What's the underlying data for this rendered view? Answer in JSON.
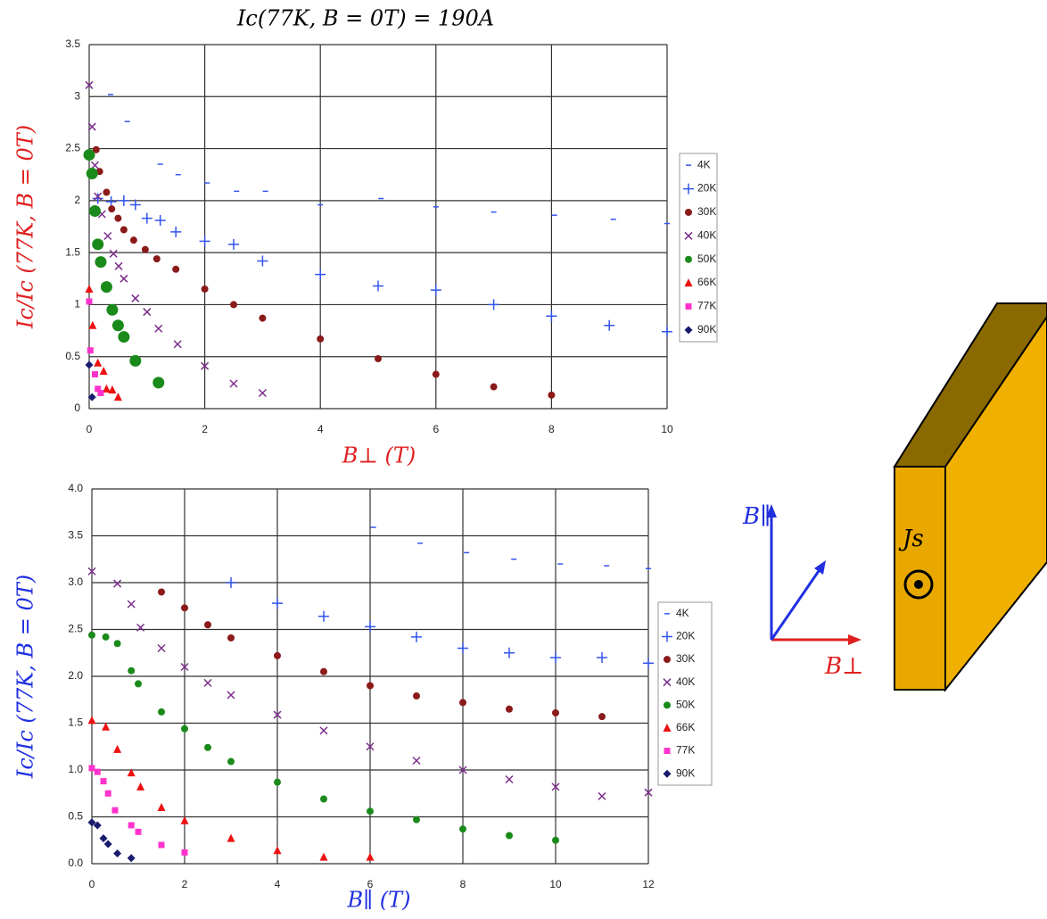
{
  "chart_data": [
    {
      "type": "scatter",
      "title": "Ic(77K, B = 0T) = 190A",
      "xlabel": "B⊥ (T)",
      "ylabel": "Ic/Ic (77K, B = 0T)",
      "label_color": "#e02020",
      "xlim": [
        0,
        10
      ],
      "xticks": [
        0,
        2,
        4,
        6,
        8,
        10
      ],
      "ylim": [
        0,
        3.5
      ],
      "yticks": [
        0,
        0.5,
        1,
        1.5,
        2,
        2.5,
        3,
        3.5
      ],
      "grid": true,
      "legend": "right",
      "series": [
        {
          "name": "4K",
          "color": "#3355ee",
          "marker": "dash",
          "x": [
            0.37,
            0.66,
            1.23,
            1.54,
            2.04,
            2.55,
            3.05,
            4.0,
            5.05,
            6.0,
            7.0,
            8.05,
            9.07,
            10.0
          ],
          "values": [
            3.02,
            2.76,
            2.35,
            2.25,
            2.17,
            2.09,
            2.09,
            1.96,
            2.02,
            1.94,
            1.89,
            1.86,
            1.82,
            1.78
          ]
        },
        {
          "name": "20K",
          "color": "#3355ee",
          "marker": "plus",
          "x": [
            0.15,
            0.38,
            0.6,
            0.8,
            1.0,
            1.23,
            1.5,
            2.0,
            2.5,
            3.0,
            4.0,
            5.0,
            6.0,
            7.0,
            8.0,
            9.0,
            10.0
          ],
          "values": [
            2.02,
            1.99,
            2.0,
            1.96,
            1.83,
            1.81,
            1.7,
            1.61,
            1.58,
            1.42,
            1.29,
            1.18,
            1.14,
            1.0,
            0.89,
            0.8,
            0.74
          ]
        },
        {
          "name": "30K",
          "color": "#8b1a1a",
          "marker": "circle",
          "x": [
            0.12,
            0.18,
            0.3,
            0.39,
            0.5,
            0.6,
            0.77,
            0.97,
            1.17,
            1.5,
            2.0,
            2.5,
            3.0,
            4.0,
            5.0,
            6.0,
            7.0,
            8.0
          ],
          "values": [
            2.49,
            2.28,
            2.08,
            1.92,
            1.83,
            1.72,
            1.62,
            1.53,
            1.44,
            1.34,
            1.15,
            1.0,
            0.87,
            0.67,
            0.48,
            0.33,
            0.21,
            0.13
          ]
        },
        {
          "name": "40K",
          "color": "#7b2d8b",
          "marker": "x",
          "x": [
            0,
            0.05,
            0.1,
            0.15,
            0.22,
            0.32,
            0.42,
            0.51,
            0.6,
            0.8,
            1.0,
            1.2,
            1.53,
            2.0,
            2.5,
            3.0
          ],
          "values": [
            3.11,
            2.71,
            2.34,
            2.04,
            1.87,
            1.66,
            1.49,
            1.37,
            1.25,
            1.06,
            0.93,
            0.77,
            0.62,
            0.41,
            0.24,
            0.15
          ]
        },
        {
          "name": "50K",
          "color": "#1a8a1a",
          "marker": "bigcircle",
          "x": [
            0,
            0.05,
            0.1,
            0.15,
            0.2,
            0.3,
            0.4,
            0.5,
            0.6,
            0.8,
            1.2
          ],
          "values": [
            2.44,
            2.26,
            1.9,
            1.58,
            1.41,
            1.17,
            0.95,
            0.8,
            0.69,
            0.46,
            0.25
          ]
        },
        {
          "name": "66K",
          "color": "#ee1111",
          "marker": "triangle",
          "x": [
            0,
            0.06,
            0.15,
            0.25,
            0.3,
            0.4,
            0.5
          ],
          "values": [
            1.15,
            0.8,
            0.44,
            0.36,
            0.19,
            0.18,
            0.11
          ]
        },
        {
          "name": "77K",
          "color": "#ff33cc",
          "marker": "square",
          "x": [
            0,
            0.02,
            0.1,
            0.15,
            0.2
          ],
          "values": [
            1.03,
            0.56,
            0.33,
            0.19,
            0.15
          ]
        },
        {
          "name": "90K",
          "color": "#1a1a6e",
          "marker": "diamond",
          "x": [
            0,
            0.05
          ],
          "values": [
            0.42,
            0.11
          ]
        }
      ]
    },
    {
      "type": "scatter",
      "xlabel": "B∥ (T)",
      "ylabel": "Ic/Ic (77K, B = 0T)",
      "label_color": "#2030e0",
      "xlim": [
        0,
        12
      ],
      "xticks": [
        0,
        2,
        4,
        6,
        8,
        10,
        12
      ],
      "ylim": [
        0,
        4
      ],
      "yticks": [
        {
          "value": 0,
          "label": "0.0"
        },
        {
          "value": 0.5,
          "label": "0.5"
        },
        {
          "value": 1,
          "label": "1.0"
        },
        {
          "value": 1.5,
          "label": "1.5"
        },
        {
          "value": 2,
          "label": "2.0"
        },
        {
          "value": 2.5,
          "label": "2.5"
        },
        {
          "value": 3,
          "label": "3.0"
        },
        {
          "value": 3.5,
          "label": "3.5"
        },
        {
          "value": 4,
          "label": "4.0"
        }
      ],
      "grid": true,
      "legend": "right",
      "series": [
        {
          "name": "4K",
          "color": "#3355ee",
          "marker": "dash",
          "x": [
            6.07,
            7.08,
            8.08,
            9.1,
            10.1,
            11.1,
            12.0
          ],
          "values": [
            3.59,
            3.42,
            3.32,
            3.25,
            3.2,
            3.18,
            3.15
          ]
        },
        {
          "name": "20K",
          "color": "#3355ee",
          "marker": "plus",
          "x": [
            3.0,
            4.0,
            5.0,
            6.0,
            7.0,
            8.0,
            9.0,
            10.0,
            11.0,
            12.0
          ],
          "values": [
            3.0,
            2.78,
            2.64,
            2.53,
            2.42,
            2.3,
            2.25,
            2.2,
            2.2,
            2.14
          ]
        },
        {
          "name": "30K",
          "color": "#8b1a1a",
          "marker": "circle",
          "x": [
            1.5,
            2.0,
            2.5,
            3.0,
            4.0,
            5.0,
            6.0,
            7.0,
            8.0,
            9.0,
            10.0,
            11.0
          ],
          "values": [
            2.9,
            2.73,
            2.55,
            2.41,
            2.22,
            2.05,
            1.9,
            1.79,
            1.72,
            1.65,
            1.61,
            1.57
          ]
        },
        {
          "name": "40K",
          "color": "#7b2d8b",
          "marker": "x",
          "x": [
            0,
            0.55,
            0.85,
            1.05,
            1.5,
            2.0,
            2.5,
            3.0,
            4.0,
            5.0,
            6.0,
            7.0,
            8.0,
            9.0,
            10.0,
            11.0,
            12.0
          ],
          "values": [
            3.12,
            2.99,
            2.77,
            2.52,
            2.3,
            2.1,
            1.93,
            1.8,
            1.59,
            1.42,
            1.25,
            1.1,
            1.0,
            0.9,
            0.82,
            0.72,
            0.76
          ]
        },
        {
          "name": "50K",
          "color": "#1a8a1a",
          "marker": "circle",
          "x": [
            0,
            0.3,
            0.55,
            0.85,
            1.0,
            1.5,
            2.0,
            2.5,
            3.0,
            4.0,
            5.0,
            6.0,
            7.0,
            8.0,
            9.0,
            10.0
          ],
          "values": [
            2.44,
            2.42,
            2.35,
            2.06,
            1.92,
            1.62,
            1.44,
            1.24,
            1.09,
            0.87,
            0.69,
            0.56,
            0.47,
            0.37,
            0.3,
            0.25
          ]
        },
        {
          "name": "66K",
          "color": "#ee1111",
          "marker": "triangle",
          "x": [
            0,
            0.3,
            0.55,
            0.85,
            1.05,
            1.5,
            2.0,
            3.0,
            4.0,
            5.0,
            6.0
          ],
          "values": [
            1.53,
            1.46,
            1.22,
            0.97,
            0.82,
            0.6,
            0.46,
            0.27,
            0.14,
            0.07,
            0.07
          ]
        },
        {
          "name": "77K",
          "color": "#ff33cc",
          "marker": "square",
          "x": [
            0,
            0.12,
            0.25,
            0.35,
            0.5,
            0.85,
            1.0,
            1.5,
            2.0
          ],
          "values": [
            1.02,
            0.98,
            0.88,
            0.75,
            0.57,
            0.41,
            0.34,
            0.2,
            0.12
          ]
        },
        {
          "name": "90K",
          "color": "#1a1a6e",
          "marker": "diamond",
          "x": [
            0,
            0.12,
            0.25,
            0.35,
            0.55,
            0.85
          ],
          "values": [
            0.44,
            0.41,
            0.27,
            0.21,
            0.11,
            0.06
          ]
        }
      ]
    }
  ],
  "diagram": {
    "labels": [
      "B∥",
      "B⊥",
      "Js"
    ]
  }
}
